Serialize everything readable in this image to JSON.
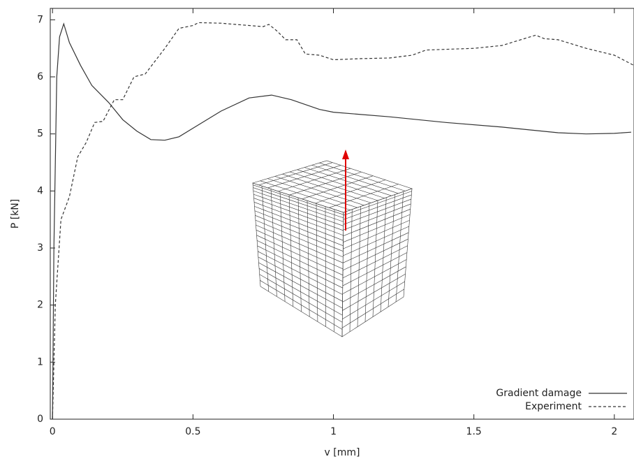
{
  "chart_data": {
    "type": "line",
    "x_label": "v [mm]",
    "y_label": "P [kN]",
    "xlim": [
      -0.008,
      2.07
    ],
    "ylim": [
      0,
      7.2
    ],
    "xticks": [
      0,
      0.5,
      1,
      1.5,
      2
    ],
    "yticks": [
      0,
      1,
      2,
      3,
      4,
      5,
      6,
      7
    ],
    "legend": "lower right",
    "series": [
      {
        "name": "Gradient damage",
        "color": "#333333",
        "dash": "none",
        "x": [
          0,
          0.005,
          0.015,
          0.025,
          0.04,
          0.06,
          0.1,
          0.14,
          0.2,
          0.25,
          0.3,
          0.35,
          0.4,
          0.45,
          0.5,
          0.6,
          0.7,
          0.78,
          0.85,
          0.95,
          1.0,
          1.2,
          1.4,
          1.6,
          1.8,
          1.9,
          2.0,
          2.06
        ],
        "values": [
          0,
          3.0,
          6.0,
          6.7,
          6.93,
          6.6,
          6.2,
          5.85,
          5.55,
          5.25,
          5.05,
          4.9,
          4.89,
          4.95,
          5.1,
          5.4,
          5.63,
          5.68,
          5.6,
          5.43,
          5.38,
          5.3,
          5.2,
          5.12,
          5.02,
          5.0,
          5.01,
          5.03
        ]
      },
      {
        "name": "Experiment",
        "color": "#333333",
        "dash": "4,3",
        "x": [
          0,
          0.005,
          0.01,
          0.03,
          0.06,
          0.09,
          0.12,
          0.15,
          0.18,
          0.22,
          0.25,
          0.29,
          0.33,
          0.4,
          0.45,
          0.5,
          0.52,
          0.6,
          0.65,
          0.7,
          0.75,
          0.77,
          0.8,
          0.83,
          0.87,
          0.9,
          0.95,
          1.0,
          1.1,
          1.2,
          1.28,
          1.33,
          1.5,
          1.6,
          1.7,
          1.72,
          1.75,
          1.8,
          1.9,
          2.0,
          2.07
        ],
        "values": [
          0,
          1.0,
          2.0,
          3.5,
          3.9,
          4.6,
          4.85,
          5.2,
          5.22,
          5.6,
          5.6,
          6.0,
          6.05,
          6.5,
          6.85,
          6.9,
          6.95,
          6.94,
          6.92,
          6.9,
          6.88,
          6.92,
          6.8,
          6.65,
          6.65,
          6.4,
          6.38,
          6.3,
          6.32,
          6.33,
          6.38,
          6.47,
          6.5,
          6.55,
          6.7,
          6.73,
          6.67,
          6.65,
          6.5,
          6.38,
          6.2
        ]
      }
    ]
  }
}
